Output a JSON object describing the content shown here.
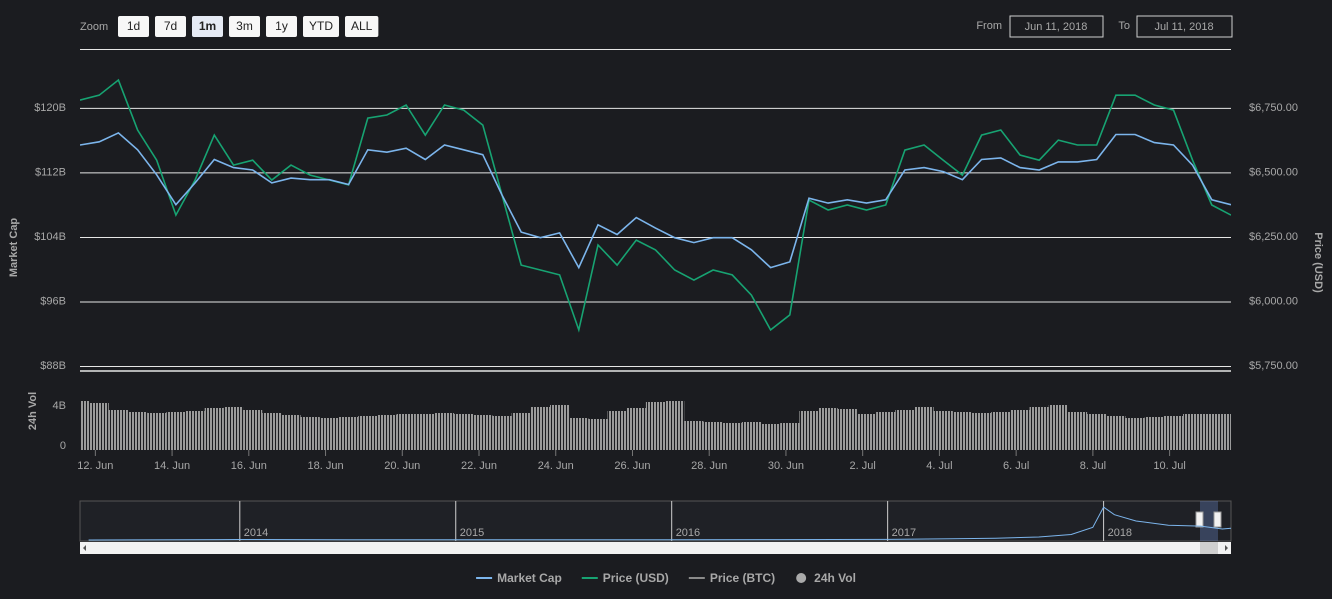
{
  "chart_data": [
    {
      "type": "line",
      "xlim": [
        0,
        60
      ],
      "ylim": [
        88,
        127.3
      ],
      "yticks": [
        {
          "value": 88,
          "label": "$88B"
        },
        {
          "value": 96,
          "label": "$96B"
        },
        {
          "value": 104,
          "label": "$104B"
        },
        {
          "value": 112,
          "label": "$112B"
        },
        {
          "value": 120,
          "label": "$120B"
        }
      ],
      "y2lim": [
        5750,
        6979
      ],
      "y2ticks": [
        {
          "value": 5750,
          "label": "$5,750.00"
        },
        {
          "value": 6000,
          "label": "$6,000.00"
        },
        {
          "value": 6250,
          "label": "$6,250.00"
        },
        {
          "value": 6500,
          "label": "$6,500.00"
        },
        {
          "value": 6750,
          "label": "$6,750.00"
        }
      ],
      "ylabel": "Market Cap",
      "y2label": "Price (USD)",
      "grid": true,
      "series": [
        {
          "name": "Market Cap",
          "color": "#7cb5ec",
          "values": [
            115.4,
            115.8,
            116.9,
            114.8,
            111.7,
            108.0,
            110.7,
            113.6,
            112.6,
            112.3,
            110.7,
            111.3,
            111.1,
            111.1,
            110.5,
            114.8,
            114.5,
            115.0,
            113.6,
            115.4,
            114.8,
            114.2,
            109.2,
            104.6,
            103.9,
            104.5,
            100.2,
            105.5,
            104.3,
            106.4,
            105.1,
            103.9,
            103.3,
            103.9,
            103.9,
            102.4,
            100.2,
            100.9,
            108.8,
            108.2,
            108.6,
            108.2,
            108.6,
            112.3,
            112.6,
            112.1,
            111.1,
            113.6,
            113.8,
            112.6,
            112.3,
            113.3,
            113.3,
            113.6,
            116.7,
            116.7,
            115.7,
            115.4,
            112.9,
            108.6,
            108.0
          ]
        },
        {
          "name": "Price (USD)",
          "color": "#17a372",
          "axis": "y2",
          "values": [
            6781,
            6800,
            6859,
            6665,
            6548,
            6335,
            6471,
            6645,
            6529,
            6548,
            6471,
            6529,
            6490,
            6471,
            6452,
            6711,
            6723,
            6762,
            6645,
            6762,
            6742,
            6684,
            6413,
            6141,
            6122,
            6103,
            5890,
            6219,
            6141,
            6238,
            6200,
            6122,
            6083,
            6122,
            6103,
            6025,
            5890,
            5948,
            6393,
            6355,
            6374,
            6355,
            6374,
            6587,
            6607,
            6548,
            6490,
            6645,
            6665,
            6568,
            6548,
            6626,
            6607,
            6607,
            6800,
            6800,
            6762,
            6742,
            6548,
            6374,
            6335
          ]
        }
      ],
      "hidden_series": [
        {
          "name": "Price (BTC)",
          "color": "#8a8a8a"
        }
      ]
    },
    {
      "type": "bar",
      "xlim": [
        0,
        60
      ],
      "ylim": [
        0,
        7.8
      ],
      "yticks": [
        0,
        {
          "value": 4,
          "label": "4B"
        }
      ],
      "ylabel": "24h Vol",
      "xticks": [
        {
          "value": 0.8,
          "label": "12. Jun"
        },
        {
          "value": 4.8,
          "label": "14. Jun"
        },
        {
          "value": 8.8,
          "label": "16. Jun"
        },
        {
          "value": 12.8,
          "label": "18. Jun"
        },
        {
          "value": 16.8,
          "label": "20. Jun"
        },
        {
          "value": 20.8,
          "label": "22. Jun"
        },
        {
          "value": 24.8,
          "label": "24. Jun"
        },
        {
          "value": 28.8,
          "label": "26. Jun"
        },
        {
          "value": 32.8,
          "label": "28. Jun"
        },
        {
          "value": 36.8,
          "label": "30. Jun"
        },
        {
          "value": 40.8,
          "label": "2. Jul"
        },
        {
          "value": 44.8,
          "label": "4. Jul"
        },
        {
          "value": 48.8,
          "label": "6. Jul"
        },
        {
          "value": 52.8,
          "label": "8. Jul"
        },
        {
          "value": 56.8,
          "label": "10. Jul"
        }
      ],
      "series": [
        {
          "name": "24h Vol",
          "color": "#9a9a9a",
          "values": [
            4.9,
            4.7,
            4.0,
            3.8,
            3.7,
            3.8,
            3.9,
            4.2,
            4.3,
            4.0,
            3.7,
            3.5,
            3.3,
            3.2,
            3.3,
            3.4,
            3.5,
            3.6,
            3.6,
            3.7,
            3.6,
            3.5,
            3.4,
            3.7,
            4.3,
            4.5,
            3.2,
            3.1,
            3.9,
            4.2,
            4.8,
            4.9,
            2.9,
            2.8,
            2.7,
            2.8,
            2.6,
            2.7,
            3.9,
            4.2,
            4.1,
            3.6,
            3.8,
            4.0,
            4.3,
            3.9,
            3.8,
            3.7,
            3.8,
            4.0,
            4.3,
            4.5,
            3.8,
            3.6,
            3.4,
            3.2,
            3.3,
            3.4,
            3.6,
            3.6,
            3.6
          ]
        }
      ]
    },
    {
      "type": "area",
      "color": "#7cb5ec",
      "xlim": [
        2013.26,
        2018.59
      ],
      "ylim": [
        0,
        900
      ],
      "xticks": [
        2014,
        2015,
        2016,
        2017,
        2018
      ],
      "x": [
        2013.3,
        2013.9,
        2014.0,
        2014.5,
        2015.0,
        2015.5,
        2016.0,
        2016.5,
        2017.0,
        2017.3,
        2017.5,
        2017.7,
        2017.85,
        2017.95,
        2018.0,
        2018.05,
        2018.15,
        2018.3,
        2018.45,
        2018.55,
        2018.59
      ],
      "values": [
        1,
        10,
        12,
        8,
        4,
        4,
        6,
        10,
        15,
        30,
        40,
        70,
        130,
        300,
        780,
        600,
        450,
        350,
        330,
        260,
        280
      ]
    }
  ],
  "controls": {
    "zoom_label": "Zoom",
    "zoom_buttons": [
      "1d",
      "7d",
      "1m",
      "3m",
      "1y",
      "YTD",
      "ALL"
    ],
    "selected": 2,
    "from_label": "From",
    "from": "Jun 11, 2018",
    "to_label": "To",
    "to": "Jul 11, 2018"
  }
}
